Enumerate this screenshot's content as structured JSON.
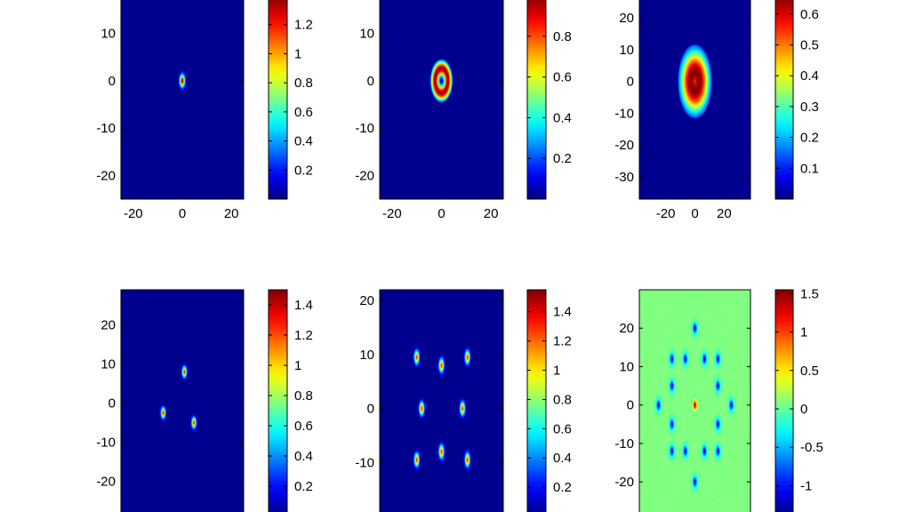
{
  "figure": {
    "panels": [
      {
        "id": "top-left",
        "plot": {
          "xlim": [
            -25,
            25
          ],
          "ylim": [
            -25,
            18
          ],
          "xticks": [
            -20,
            0,
            20
          ],
          "yticks": [
            -20,
            -10,
            0,
            10
          ]
        },
        "bg": "#00008f",
        "features": [
          {
            "x": 0,
            "y": 0,
            "type": "peak",
            "peak": 1.35,
            "sx": 0.85,
            "sy": 1.05
          }
        ],
        "colorbar": {
          "min": 0,
          "max": 1.4,
          "ticks": [
            0.2,
            0.4,
            0.6,
            0.8,
            1,
            1.2
          ]
        }
      },
      {
        "id": "top-middle",
        "plot": {
          "xlim": [
            -25,
            25
          ],
          "ylim": [
            -25,
            18
          ],
          "xticks": [
            -20,
            0,
            20
          ],
          "yticks": [
            -20,
            -10,
            0,
            10
          ]
        },
        "bg": "#00008f",
        "features": [
          {
            "x": 0,
            "y": 0,
            "type": "ring",
            "peak": 0.98,
            "r": 2.6,
            "w": 2.1
          }
        ],
        "colorbar": {
          "min": 0,
          "max": 1.0,
          "ticks": [
            0.2,
            0.4,
            0.6,
            0.8
          ]
        }
      },
      {
        "id": "top-right",
        "plot": {
          "xlim": [
            -38,
            38
          ],
          "ylim": [
            -37,
            27
          ],
          "xticks": [
            -20,
            0,
            20
          ],
          "yticks": [
            -30,
            -20,
            -10,
            0,
            10,
            20
          ]
        },
        "bg": "#00008f",
        "features": [
          {
            "x": 0,
            "y": 0,
            "type": "ring",
            "peak": 0.66,
            "r": 3.0,
            "w": 9.0
          }
        ],
        "colorbar": {
          "min": 0,
          "max": 0.66,
          "ticks": [
            0.1,
            0.2,
            0.3,
            0.4,
            0.5,
            0.6
          ]
        }
      },
      {
        "id": "bottom-left",
        "plot": {
          "xlim": [
            -29,
            29
          ],
          "ylim": [
            -29,
            29
          ],
          "xticks": [],
          "yticks": [
            -20,
            -10,
            0,
            10,
            20
          ]
        },
        "bg": "#00008f",
        "features": [
          {
            "x": 1,
            "y": 8,
            "type": "peak",
            "peak": 1.3,
            "sx": 0.85,
            "sy": 1.1
          },
          {
            "x": -9,
            "y": -2.5,
            "type": "peak",
            "peak": 1.3,
            "sx": 0.85,
            "sy": 1.1
          },
          {
            "x": 5.5,
            "y": -5,
            "type": "peak",
            "peak": 1.3,
            "sx": 0.85,
            "sy": 1.1
          }
        ],
        "colorbar": {
          "min": 0,
          "max": 1.5,
          "ticks": [
            0.2,
            0.4,
            0.6,
            0.8,
            1,
            1.2,
            1.4
          ]
        }
      },
      {
        "id": "bottom-middle",
        "plot": {
          "xlim": [
            -25,
            25
          ],
          "ylim": [
            -20,
            22
          ],
          "xticks": [],
          "yticks": [
            -10,
            0,
            10,
            20
          ]
        },
        "bg": "#00008f",
        "features": [
          {
            "x": -10,
            "y": 9.5,
            "type": "peak",
            "peak": 1.3,
            "sx": 0.8,
            "sy": 1.0
          },
          {
            "x": 0,
            "y": 8,
            "type": "peak",
            "peak": 1.3,
            "sx": 0.8,
            "sy": 1.0
          },
          {
            "x": 10.5,
            "y": 9.5,
            "type": "peak",
            "peak": 1.3,
            "sx": 0.8,
            "sy": 1.0
          },
          {
            "x": -8,
            "y": 0,
            "type": "peak",
            "peak": 1.3,
            "sx": 0.8,
            "sy": 1.0
          },
          {
            "x": 8.5,
            "y": 0,
            "type": "peak",
            "peak": 1.3,
            "sx": 0.8,
            "sy": 1.0
          },
          {
            "x": -10,
            "y": -9.5,
            "type": "peak",
            "peak": 1.3,
            "sx": 0.8,
            "sy": 1.0
          },
          {
            "x": 0,
            "y": -8,
            "type": "peak",
            "peak": 1.3,
            "sx": 0.8,
            "sy": 1.0
          },
          {
            "x": 10.5,
            "y": -9.5,
            "type": "peak",
            "peak": 1.3,
            "sx": 0.8,
            "sy": 1.0
          }
        ],
        "colorbar": {
          "min": 0,
          "max": 1.55,
          "ticks": [
            0.2,
            0.4,
            0.6,
            0.8,
            1,
            1.2,
            1.4
          ]
        }
      },
      {
        "id": "bottom-right",
        "plot": {
          "xlim": [
            -29,
            29
          ],
          "ylim": [
            -29,
            30
          ],
          "xticks": [],
          "yticks": [
            -20,
            -10,
            0,
            10,
            20
          ]
        },
        "bg": "#80ff80",
        "features": [
          {
            "x": 0,
            "y": 0,
            "type": "peak",
            "peak": 1.4,
            "sx": 0.8,
            "sy": 1.0
          },
          {
            "x": 0,
            "y": 20,
            "type": "dip",
            "peak": -1.2,
            "sx": 0.8,
            "sy": 1.0
          },
          {
            "x": -12,
            "y": 12,
            "type": "dip",
            "peak": -1.2,
            "sx": 0.8,
            "sy": 1.0
          },
          {
            "x": -5,
            "y": 12,
            "type": "dip",
            "peak": -1.2,
            "sx": 0.8,
            "sy": 1.0
          },
          {
            "x": 5,
            "y": 12,
            "type": "dip",
            "peak": -1.2,
            "sx": 0.8,
            "sy": 1.0
          },
          {
            "x": 12,
            "y": 12,
            "type": "dip",
            "peak": -1.2,
            "sx": 0.8,
            "sy": 1.0
          },
          {
            "x": -12,
            "y": 5,
            "type": "dip",
            "peak": -1.2,
            "sx": 0.8,
            "sy": 1.0
          },
          {
            "x": 12,
            "y": 5,
            "type": "dip",
            "peak": -1.2,
            "sx": 0.8,
            "sy": 1.0
          },
          {
            "x": -19,
            "y": 0,
            "type": "dip",
            "peak": -1.2,
            "sx": 0.8,
            "sy": 1.0
          },
          {
            "x": 19,
            "y": 0,
            "type": "dip",
            "peak": -1.2,
            "sx": 0.8,
            "sy": 1.0
          },
          {
            "x": -12,
            "y": -5,
            "type": "dip",
            "peak": -1.2,
            "sx": 0.8,
            "sy": 1.0
          },
          {
            "x": 12,
            "y": -5,
            "type": "dip",
            "peak": -1.2,
            "sx": 0.8,
            "sy": 1.0
          },
          {
            "x": -12,
            "y": -12,
            "type": "dip",
            "peak": -1.2,
            "sx": 0.8,
            "sy": 1.0
          },
          {
            "x": -5,
            "y": -12,
            "type": "dip",
            "peak": -1.2,
            "sx": 0.8,
            "sy": 1.0
          },
          {
            "x": 5,
            "y": -12,
            "type": "dip",
            "peak": -1.2,
            "sx": 0.8,
            "sy": 1.0
          },
          {
            "x": 12,
            "y": -12,
            "type": "dip",
            "peak": -1.2,
            "sx": 0.8,
            "sy": 1.0
          },
          {
            "x": 0,
            "y": -20,
            "type": "dip",
            "peak": -1.2,
            "sx": 0.8,
            "sy": 1.0
          }
        ],
        "colorbar": {
          "min": -1.4,
          "max": 1.55,
          "ticks": [
            -1,
            -0.5,
            0,
            0.5,
            1,
            1.5
          ]
        }
      }
    ]
  }
}
